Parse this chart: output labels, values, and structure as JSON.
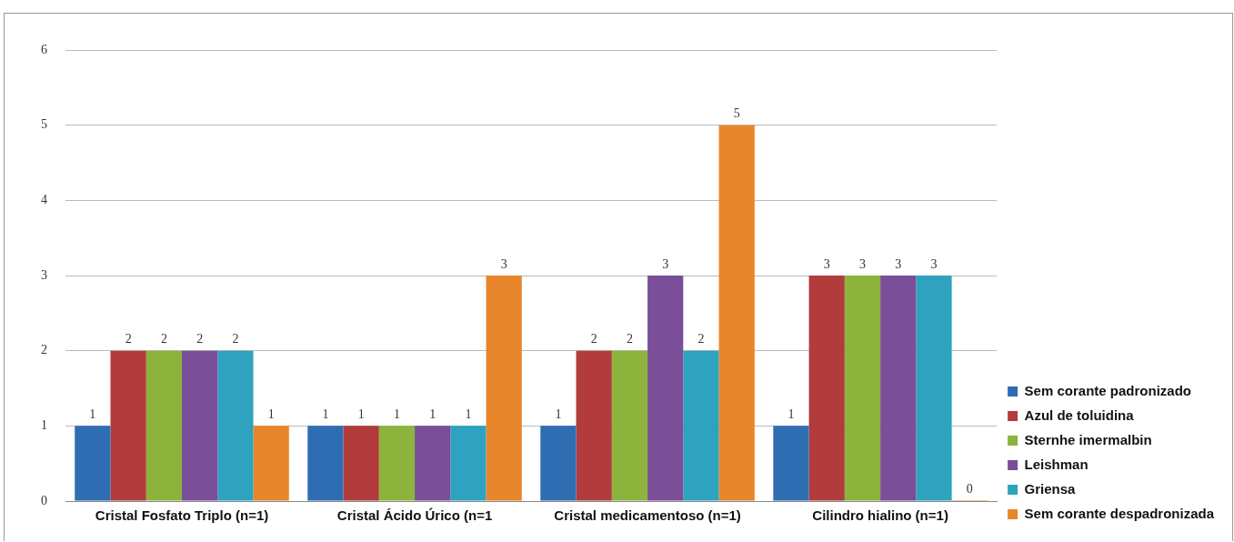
{
  "chart_data": {
    "type": "bar",
    "categories": [
      "Cristal Fosfato Triplo (n=1)",
      "Cristal Ácido Úrico (n=1",
      "Cristal medicamentoso (n=1)",
      "Cilindro hialino (n=1)"
    ],
    "series": [
      {
        "name": "Sem corante padronizado",
        "color": "#2f6db3",
        "values": [
          1,
          1,
          1,
          1
        ]
      },
      {
        "name": "Azul de toluidina",
        "color": "#b23b3b",
        "values": [
          2,
          1,
          2,
          3
        ]
      },
      {
        "name": "Sternhe imermalbin",
        "color": "#8cb43c",
        "values": [
          2,
          1,
          2,
          3
        ]
      },
      {
        "name": "Leishman",
        "color": "#7a4e99",
        "values": [
          2,
          1,
          3,
          3
        ]
      },
      {
        "name": "Griensa",
        "color": "#2ea2be",
        "values": [
          2,
          1,
          2,
          3
        ]
      },
      {
        "name": "Sem corante despadronizada",
        "color": "#e8862b",
        "values": [
          1,
          3,
          5,
          0
        ]
      }
    ],
    "ylim": [
      0,
      6
    ],
    "yticks": [
      0,
      1,
      2,
      3,
      4,
      5,
      6
    ],
    "grid": "y",
    "legend": "right",
    "data_labels": true
  }
}
